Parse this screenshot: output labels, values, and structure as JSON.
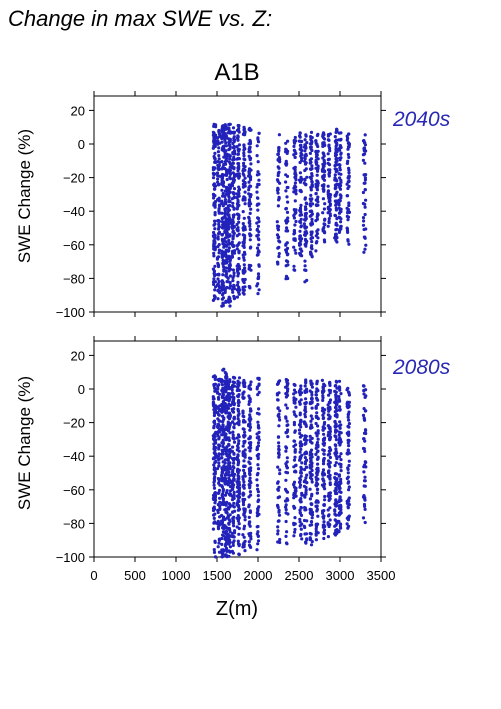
{
  "header": "Change in max SWE vs. Z:",
  "colors": {
    "points": "#2222bb",
    "period_label": "#2828b4",
    "axes": "#000000"
  },
  "chart_data": {
    "type": "scatter",
    "scenario": "A1B",
    "xlabel": "Z(m)",
    "ylabel": "SWE Change (%)",
    "xlim": [
      0,
      3500
    ],
    "xticks": [
      0,
      500,
      1000,
      1500,
      2000,
      2500,
      3000,
      3500
    ],
    "ylim": [
      -100,
      27
    ],
    "yticks": [
      -100,
      -80,
      -60,
      -40,
      -20,
      0,
      20
    ],
    "grid": false,
    "panels": [
      {
        "label": "2040s",
        "columns": [
          {
            "z": 1470,
            "min": -95,
            "max": 12,
            "density": 0.9
          },
          {
            "z": 1520,
            "min": -93,
            "max": 12,
            "density": 0.7
          },
          {
            "z": 1570,
            "min": -97,
            "max": 12,
            "density": 1.0
          },
          {
            "z": 1610,
            "min": -95,
            "max": 13,
            "density": 1.0
          },
          {
            "z": 1650,
            "min": -97,
            "max": 13,
            "density": 1.0
          },
          {
            "z": 1700,
            "min": -95,
            "max": 12,
            "density": 0.9
          },
          {
            "z": 1760,
            "min": -93,
            "max": 11,
            "density": 0.8
          },
          {
            "z": 1830,
            "min": -90,
            "max": 12,
            "density": 0.8
          },
          {
            "z": 1900,
            "min": -86,
            "max": 11,
            "density": 0.7
          },
          {
            "z": 2000,
            "min": -90,
            "max": 8,
            "density": 0.5
          },
          {
            "z": 2250,
            "min": -75,
            "max": 8,
            "density": 0.5
          },
          {
            "z": 2350,
            "min": -82,
            "max": 7,
            "density": 0.5
          },
          {
            "z": 2450,
            "min": -80,
            "max": 6,
            "density": 0.6
          },
          {
            "z": 2520,
            "min": -70,
            "max": 7,
            "density": 0.7
          },
          {
            "z": 2580,
            "min": -82,
            "max": 6,
            "density": 0.7
          },
          {
            "z": 2650,
            "min": -72,
            "max": 7,
            "density": 0.8
          },
          {
            "z": 2720,
            "min": -65,
            "max": 6,
            "density": 0.8
          },
          {
            "z": 2800,
            "min": -60,
            "max": 7,
            "density": 0.8
          },
          {
            "z": 2870,
            "min": -50,
            "max": 6,
            "density": 0.8
          },
          {
            "z": 2950,
            "min": -60,
            "max": 10,
            "density": 1.0
          },
          {
            "z": 3000,
            "min": -55,
            "max": 8,
            "density": 0.8
          },
          {
            "z": 3100,
            "min": -60,
            "max": 6,
            "density": 0.7
          },
          {
            "z": 3300,
            "min": -68,
            "max": 6,
            "density": 0.5
          }
        ]
      },
      {
        "label": "2080s",
        "columns": [
          {
            "z": 1470,
            "min": -100,
            "max": 8,
            "density": 0.9
          },
          {
            "z": 1520,
            "min": -100,
            "max": 7,
            "density": 0.7
          },
          {
            "z": 1570,
            "min": -100,
            "max": 12,
            "density": 1.0
          },
          {
            "z": 1610,
            "min": -100,
            "max": 10,
            "density": 1.0
          },
          {
            "z": 1650,
            "min": -100,
            "max": 8,
            "density": 1.0
          },
          {
            "z": 1700,
            "min": -100,
            "max": 8,
            "density": 0.9
          },
          {
            "z": 1760,
            "min": -100,
            "max": 7,
            "density": 0.9
          },
          {
            "z": 1830,
            "min": -98,
            "max": 6,
            "density": 0.8
          },
          {
            "z": 1900,
            "min": -97,
            "max": 6,
            "density": 0.7
          },
          {
            "z": 2000,
            "min": -97,
            "max": 8,
            "density": 0.5
          },
          {
            "z": 2250,
            "min": -92,
            "max": 6,
            "density": 0.5
          },
          {
            "z": 2350,
            "min": -93,
            "max": 7,
            "density": 0.5
          },
          {
            "z": 2450,
            "min": -92,
            "max": 4,
            "density": 0.6
          },
          {
            "z": 2520,
            "min": -90,
            "max": 3,
            "density": 0.7
          },
          {
            "z": 2580,
            "min": -93,
            "max": 6,
            "density": 0.7
          },
          {
            "z": 2650,
            "min": -93,
            "max": 5,
            "density": 0.8
          },
          {
            "z": 2720,
            "min": -92,
            "max": 6,
            "density": 0.8
          },
          {
            "z": 2800,
            "min": -90,
            "max": 6,
            "density": 0.8
          },
          {
            "z": 2870,
            "min": -88,
            "max": 4,
            "density": 0.8
          },
          {
            "z": 2950,
            "min": -88,
            "max": 6,
            "density": 1.0
          },
          {
            "z": 3000,
            "min": -85,
            "max": 5,
            "density": 0.8
          },
          {
            "z": 3100,
            "min": -83,
            "max": 2,
            "density": 0.7
          },
          {
            "z": 3300,
            "min": -80,
            "max": 3,
            "density": 0.5
          }
        ]
      }
    ]
  }
}
